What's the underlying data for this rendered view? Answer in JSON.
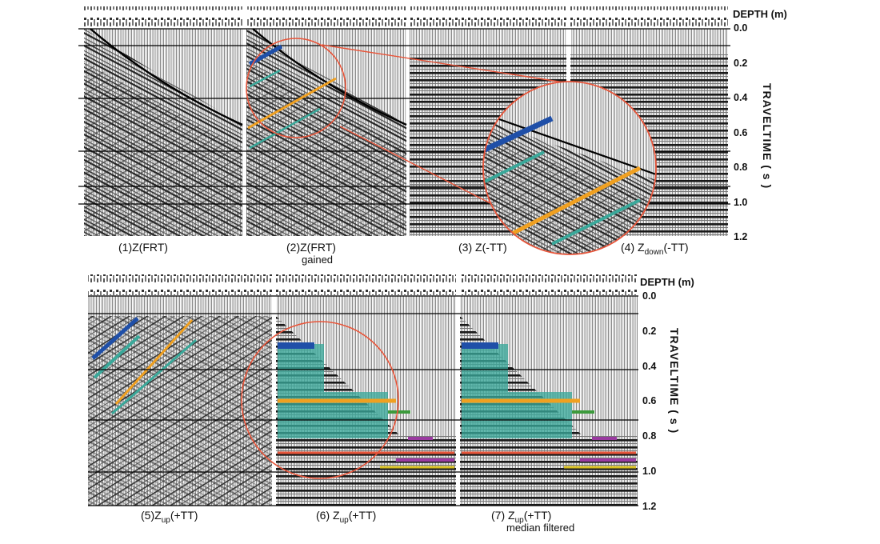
{
  "top": {
    "depth_label": "DEPTH (m)",
    "axis_label": "TRAVELTIME ( s )",
    "ticks": [
      "0.0",
      "0.2",
      "0.4",
      "0.6",
      "0.8",
      "1.0",
      "1.2"
    ],
    "panels": [
      {
        "num": "(1)",
        "name": "Z(FRT)",
        "sub": "",
        "note": ""
      },
      {
        "num": "(2)",
        "name": "Z(FRT)",
        "sub": "",
        "note": "gained"
      },
      {
        "num": "(3)",
        "name": "Z(-TT)",
        "sub": "",
        "note": ""
      },
      {
        "num": "(4)",
        "name": "Z",
        "sub": "down",
        "tail": "(-TT)",
        "note": ""
      }
    ]
  },
  "bottom": {
    "depth_label": "DEPTH (m)",
    "axis_label": "TRAVELTIME ( s )",
    "ticks": [
      "0.0",
      "0.2",
      "0.4",
      "0.6",
      "0.8",
      "1.0",
      "1.2"
    ],
    "panels": [
      {
        "num": "(5)",
        "name": "Z",
        "sub": "up",
        "tail": "(+TT)",
        "note": ""
      },
      {
        "num": "(6)",
        "name": "Z",
        "sub": "up",
        "tail": "(+TT)",
        "note": ""
      },
      {
        "num": "(7)",
        "name": "Z",
        "sub": "up",
        "tail": "(+TT)",
        "note": "median filtered"
      }
    ]
  },
  "colors": {
    "zoom": "#e8553a",
    "blue": "#1f4fa8",
    "orange": "#f0a020",
    "teal": "#3aa89a",
    "green": "#3c9a3c",
    "purple": "#9a3aa0",
    "yellow": "#d8c020"
  }
}
